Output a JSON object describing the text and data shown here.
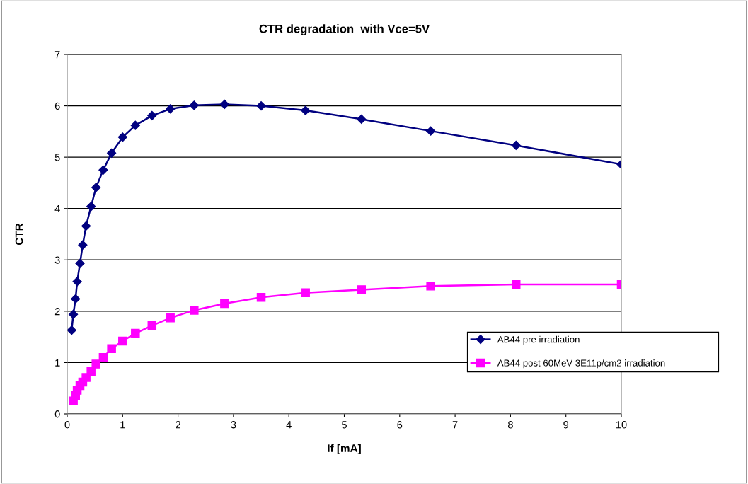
{
  "chart_data": {
    "type": "line",
    "title": "CTR degradation  with Vce=5V",
    "xlabel": "If [mA]",
    "ylabel": "CTR",
    "x": [
      0.08,
      0.11,
      0.15,
      0.18,
      0.23,
      0.28,
      0.34,
      0.43,
      0.52,
      0.65,
      0.8,
      1.0,
      1.23,
      1.53,
      1.86,
      2.29,
      2.84,
      3.5,
      4.3,
      5.31,
      6.56,
      8.1,
      10
    ],
    "series": [
      {
        "name": "AB44 pre irradiation",
        "color": "#000080",
        "marker": "diamond",
        "values": [
          1.63,
          1.94,
          2.24,
          2.58,
          2.93,
          3.29,
          3.66,
          4.04,
          4.41,
          4.75,
          5.08,
          5.39,
          5.62,
          5.81,
          5.94,
          6.01,
          6.03,
          6.0,
          5.91,
          5.74,
          5.51,
          5.23,
          4.86
        ]
      },
      {
        "name": "AB44 post 60MeV 3E11p/cm2 irradiation",
        "color": "#ff00ff",
        "marker": "square",
        "values": [
          null,
          0.25,
          0.36,
          0.46,
          0.55,
          0.62,
          0.71,
          0.83,
          0.97,
          1.1,
          1.27,
          1.42,
          1.57,
          1.72,
          1.87,
          2.02,
          2.15,
          2.27,
          2.36,
          2.42,
          2.49,
          2.52,
          2.52
        ]
      }
    ],
    "xlim": [
      0,
      10
    ],
    "xticks": [
      0,
      1,
      2,
      3,
      4,
      5,
      6,
      7,
      8,
      9,
      10
    ],
    "ylim": [
      0,
      7
    ],
    "yticks": [
      0,
      1,
      2,
      3,
      4,
      5,
      6,
      7
    ],
    "grid": "y",
    "legend": "right"
  }
}
